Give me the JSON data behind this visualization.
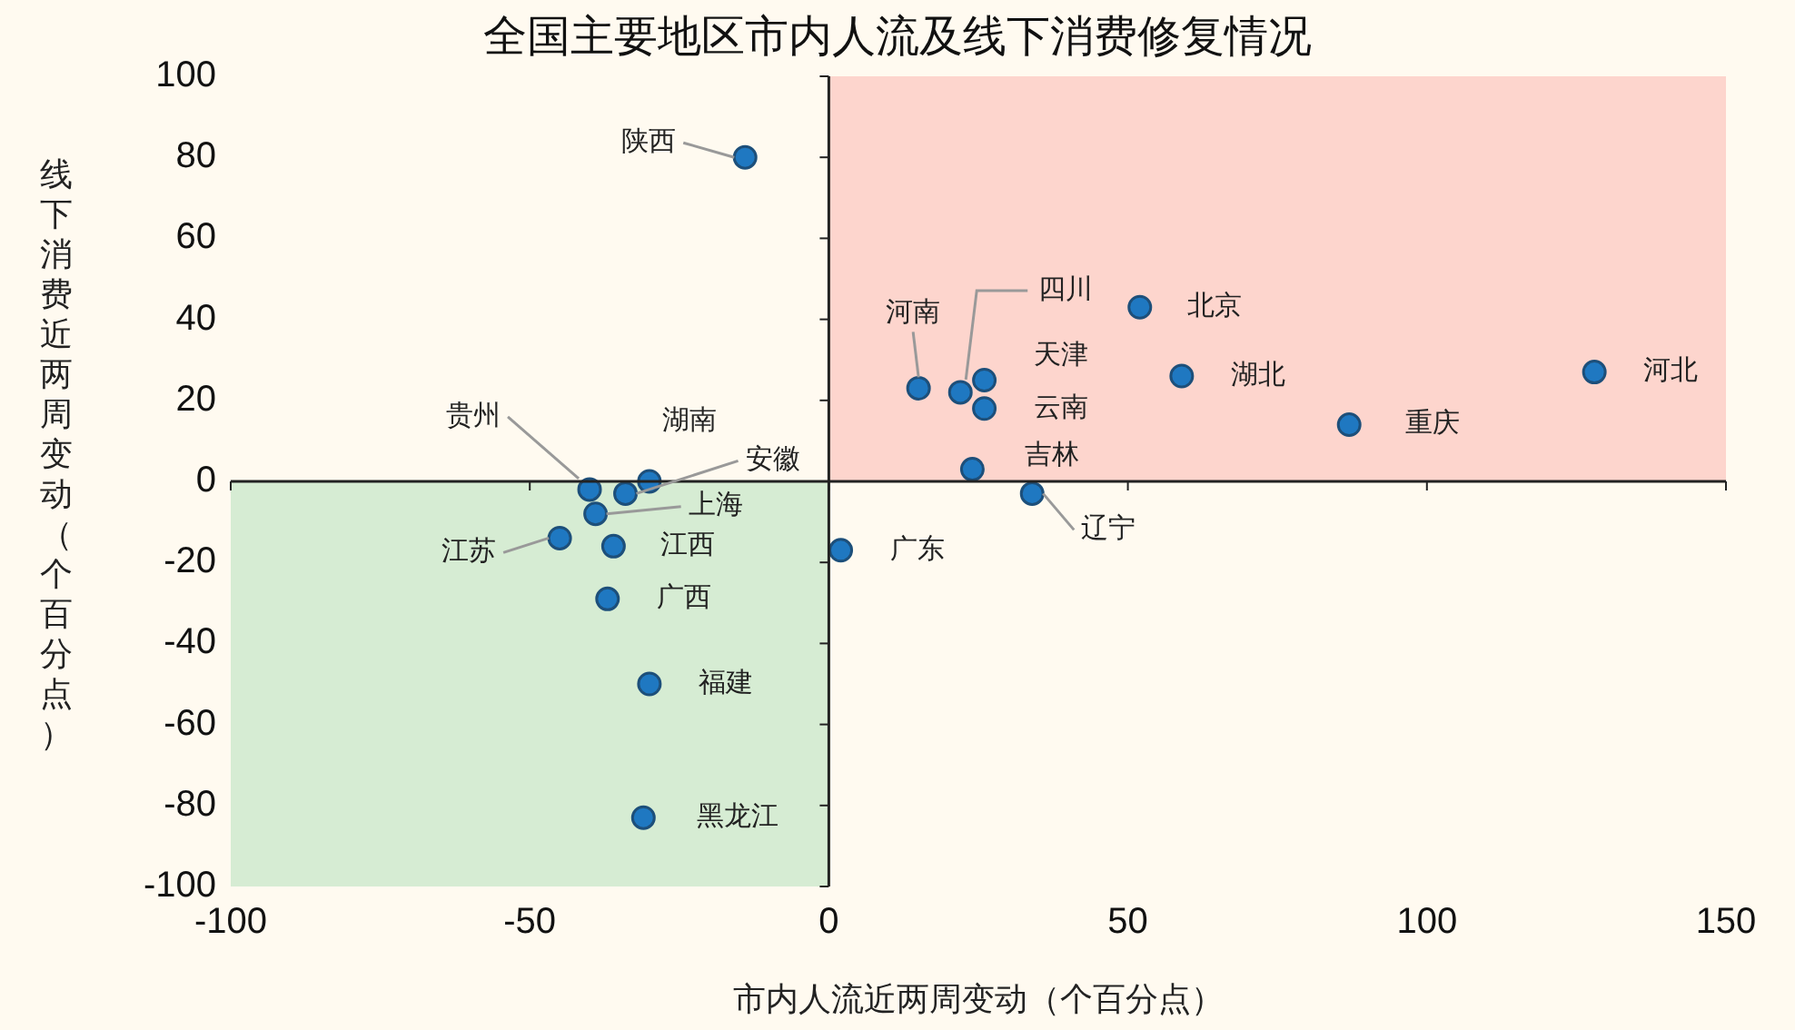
{
  "chart_data": {
    "type": "scatter",
    "title": "全国主要地区市内人流及线下消费修复情况",
    "xlabel": "市内人流近两周变动（个百分点）",
    "ylabel": "线下消费近两周变动（个百分点）",
    "xlim": [
      -100,
      150
    ],
    "xticks": [
      -100,
      -50,
      0,
      50,
      100,
      150
    ],
    "ylim": [
      -100,
      100
    ],
    "yticks": [
      -100,
      -80,
      -60,
      -40,
      -20,
      0,
      20,
      40,
      60,
      80,
      100
    ],
    "legend": false,
    "series": [
      {
        "type": "area",
        "color": "#fdd5cd",
        "x": [
          0,
          150
        ],
        "values": [
          100,
          100
        ]
      },
      {
        "type": "area",
        "color": "#d6ecd3",
        "x": [
          -100,
          0
        ],
        "values": [
          -100,
          -100
        ]
      },
      {
        "marker": "circle",
        "color": "#1f78c1",
        "x": [
          -14,
          15,
          22,
          26,
          26,
          52,
          59,
          128,
          87,
          24,
          34,
          2,
          -40,
          -30,
          -34,
          -39,
          -45,
          -36,
          -37,
          -30,
          -31
        ],
        "values": [
          80,
          23,
          22,
          25,
          18,
          43,
          26,
          27,
          14,
          3,
          -3,
          -17,
          -2,
          0,
          -3,
          -8,
          -14,
          -16,
          -29,
          -50,
          -83
        ]
      }
    ],
    "annotations": [
      {
        "text": "陕西",
        "x": -14,
        "y": 80
      },
      {
        "text": "河南",
        "x": 15,
        "y": 23
      },
      {
        "text": "四川",
        "x": 22,
        "y": 22
      },
      {
        "text": "天津",
        "x": 26,
        "y": 25
      },
      {
        "text": "云南",
        "x": 26,
        "y": 18
      },
      {
        "text": "北京",
        "x": 52,
        "y": 43
      },
      {
        "text": "湖北",
        "x": 59,
        "y": 26
      },
      {
        "text": "河北",
        "x": 128,
        "y": 27
      },
      {
        "text": "重庆",
        "x": 87,
        "y": 14
      },
      {
        "text": "吉林",
        "x": 24,
        "y": 3
      },
      {
        "text": "辽宁",
        "x": 34,
        "y": -3
      },
      {
        "text": "广东",
        "x": 2,
        "y": -17
      },
      {
        "text": "贵州",
        "x": -40,
        "y": -2
      },
      {
        "text": "湖南",
        "x": -30,
        "y": 0
      },
      {
        "text": "安徽",
        "x": -34,
        "y": -3
      },
      {
        "text": "上海",
        "x": -39,
        "y": -8
      },
      {
        "text": "江苏",
        "x": -45,
        "y": -14
      },
      {
        "text": "江西",
        "x": -36,
        "y": -16
      },
      {
        "text": "广西",
        "x": -37,
        "y": -29
      },
      {
        "text": "福建",
        "x": -30,
        "y": -50
      },
      {
        "text": "黑龙江",
        "x": -31,
        "y": -83
      }
    ]
  }
}
